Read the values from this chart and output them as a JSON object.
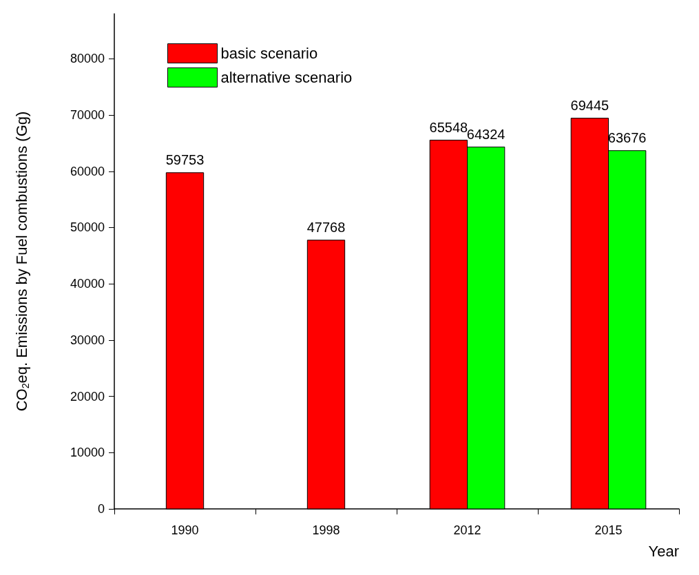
{
  "chart_data": {
    "type": "bar",
    "xlabel": "Year",
    "ylabel": "CO$_{2}$eq. Emissions by Fuel combustions (Gg)",
    "categories": [
      "1990",
      "1998",
      "2012",
      "2015"
    ],
    "series": [
      {
        "name": "basic scenario",
        "color": "#ff0000",
        "values": [
          59753,
          47768,
          65548,
          69445
        ]
      },
      {
        "name": "alternative scenario",
        "color": "#00ff00",
        "values": [
          null,
          null,
          64324,
          63676
        ]
      }
    ],
    "ylim": [
      0,
      88000
    ],
    "yticks": [
      0,
      10000,
      20000,
      30000,
      40000,
      50000,
      60000,
      70000,
      80000
    ],
    "data_labels": true,
    "grid": false,
    "legend": "top left"
  }
}
